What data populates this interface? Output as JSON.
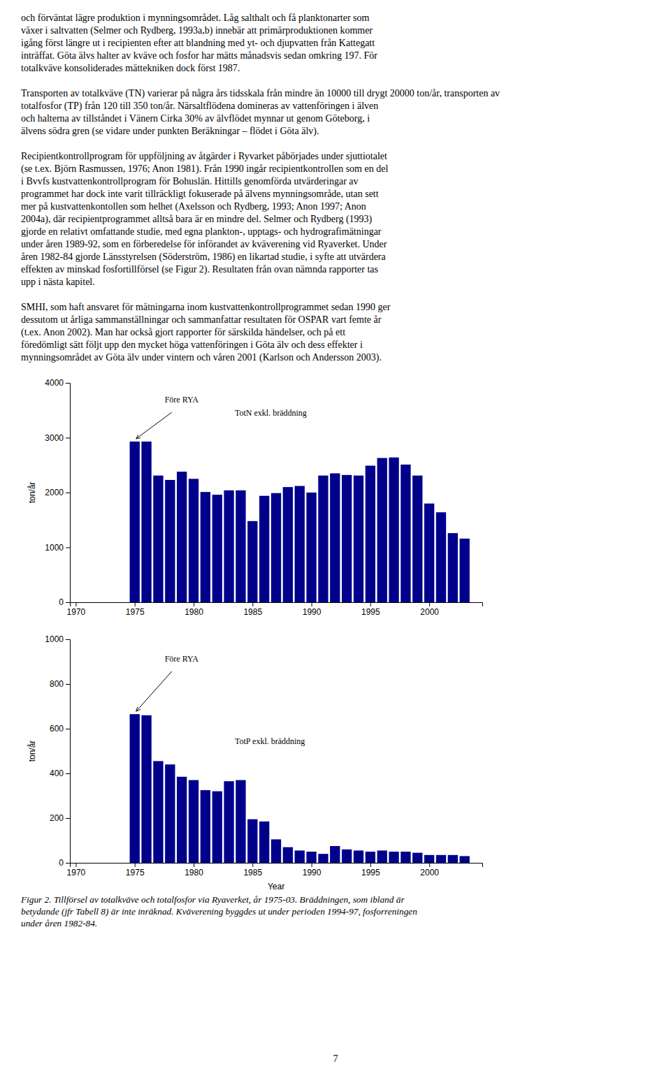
{
  "chart_data": [
    {
      "type": "bar",
      "x": [
        1975,
        1976,
        1977,
        1978,
        1979,
        1980,
        1981,
        1982,
        1983,
        1984,
        1985,
        1986,
        1987,
        1988,
        1989,
        1990,
        1991,
        1992,
        1993,
        1994,
        1995,
        1996,
        1997,
        1998,
        1999,
        2000,
        2001,
        2002,
        2003
      ],
      "values": [
        2930,
        2930,
        2310,
        2230,
        2380,
        2250,
        2010,
        1960,
        2040,
        2040,
        1480,
        1940,
        1990,
        2100,
        2120,
        2000,
        2310,
        2350,
        2320,
        2310,
        2490,
        2630,
        2640,
        2510,
        2310,
        1800,
        1640,
        1260,
        1160
      ],
      "color": "#00008B",
      "xlim": [
        1969.5,
        2004.5
      ],
      "xticks": [
        1970,
        1975,
        1980,
        1985,
        1990,
        1995,
        2000
      ],
      "ylim": [
        0,
        4000
      ],
      "yticks": [
        0,
        1000,
        2000,
        3000,
        4000
      ],
      "ylabel": "ton/år",
      "annotations": [
        "Före RYA",
        "TotN exkl. bräddning"
      ]
    },
    {
      "type": "bar",
      "x": [
        1975,
        1976,
        1977,
        1978,
        1979,
        1980,
        1981,
        1982,
        1983,
        1984,
        1985,
        1986,
        1987,
        1988,
        1989,
        1990,
        1991,
        1992,
        1993,
        1994,
        1995,
        1996,
        1997,
        1998,
        1999,
        2000,
        2001,
        2002,
        2003
      ],
      "values": [
        665,
        660,
        455,
        440,
        385,
        370,
        325,
        320,
        365,
        370,
        195,
        185,
        105,
        70,
        55,
        50,
        40,
        75,
        60,
        55,
        50,
        55,
        50,
        50,
        45,
        35,
        35,
        35,
        30
      ],
      "color": "#00008B",
      "xlim": [
        1969.5,
        2004.5
      ],
      "xticks": [
        1970,
        1975,
        1980,
        1985,
        1990,
        1995,
        2000
      ],
      "ylim": [
        0,
        1000
      ],
      "yticks": [
        0,
        200,
        400,
        600,
        800,
        1000
      ],
      "ylabel": "ton/år",
      "xlabel": "Year",
      "annotations": [
        "Före RYA",
        "TotP exkl. bräddning"
      ]
    }
  ],
  "text": [
    [
      "och förväntat lägre produktion i mynningsområdet. Låg salthalt och få planktonarter som",
      "växer i saltvatten (Selmer och Rydberg, 1993a,b) innebär att primärproduktionen kommer",
      "igång först längre ut i recipienten efter att blandning med yt- och djupvatten från Kattegatt",
      "inträffat. Göta älvs halter av kväve och fosfor har mätts månadsvis sedan omkring 197. För",
      "totalkväve konsoliderades mättekniken dock först 1987."
    ],
    [
      "Transporten av totalkväve (TN) varierar på några års tidsskala från mindre än 10000 till drygt 20000 ton/år, transporten av",
      "totalfosfor (TP) från 120 till 350 ton/år. Närsaltflödena domineras av vattenföringen i älven",
      "och halterna av tillståndet i Vänern Cirka 30% av älvflödet mynnar ut genom Göteborg, i",
      "älvens södra gren (se vidare under punkten Beräkningar – flödet i Göta älv)."
    ],
    [
      "Recipientkontrollprogram för uppföljning av åtgärder i Ryvarket påbörjades under sjuttiotalet",
      "(se t.ex. Björn Rasmussen, 1976; Anon 1981). Från 1990 ingår recipientkontrollen som en del",
      "i Bvvfs kustvattenkontrollprogram för Bohuslän. Hittills genomförda utvärderingar av",
      "programmet har dock inte varit tillräckligt fokuserade på älvens mynningsområde, utan sett",
      "mer på kustvattenkontollen som helhet (Axelsson och Rydberg, 1993; Anon 1997; Anon",
      "2004a), där recipientprogrammet alltså bara är en mindre del. Selmer och Rydberg (1993)",
      "gjorde en relativt omfattande studie, med egna plankton-, upptags- och hydrografimätningar",
      "under åren 1989-92, som en förberedelse för införandet av kväverening vid Ryaverket. Under",
      "åren 1982-84 gjorde Länsstyrelsen (Söderström, 1986) en likartad studie, i syfte att utvärdera",
      "effekten av minskad fosfortillförsel (se Figur 2). Resultaten från ovan nämnda rapporter tas",
      "upp i nästa kapitel."
    ],
    [
      "SMHI, som haft ansvaret för mätningarna inom kustvattenkontrollprogrammet sedan 1990 ger",
      "dessutom ut årliga sammanställningar och sammanfattar resultaten för OSPAR vart femte år",
      "(t.ex. Anon 2002). Man har också gjort rapporter för särskilda händelser, och på ett",
      "föredömligt sätt följt upp den mycket höga vattenföringen i Göta älv och dess effekter i",
      "mynningsområdet av Göta älv under vintern och våren 2001 (Karlson och Andersson 2003)."
    ]
  ],
  "caption": [
    "Figur 2. Tillförsel av totalkväve och totalfosfor via Ryaverket, år 1975-03. Bräddningen, som ibland är",
    "betydande (jfr Tabell 8) är inte inräknad. Kväverening byggdes ut under perioden 1994-97, fosforreningen",
    "under åren 1982-84."
  ],
  "page_number": "7"
}
